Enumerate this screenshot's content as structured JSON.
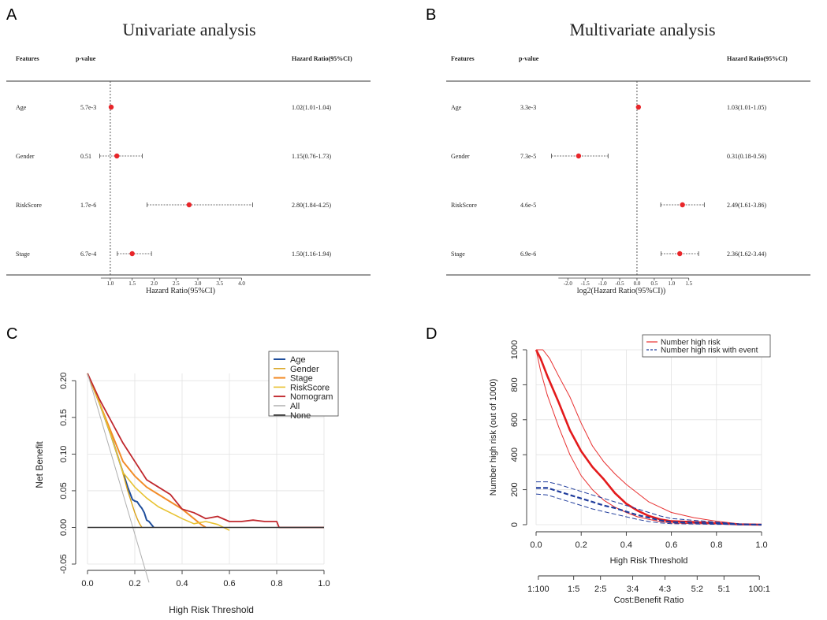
{
  "chart_data": [
    {
      "panel": "A",
      "type": "forest",
      "title": "Univariate analysis",
      "columns": {
        "features": "Features",
        "pvalue": "p-value",
        "hr": "Hazard Ratio(95%CI)"
      },
      "xlabel": "Hazard Ratio(95%CI)",
      "xscale": "linear",
      "xlim": [
        0.75,
        4.35
      ],
      "reference": 1.0,
      "xticks": [
        1.0,
        1.5,
        2.0,
        2.5,
        3.0,
        3.5,
        4.0
      ],
      "xtick_labels": [
        "1.0",
        "1.5",
        "2.0",
        "2.5",
        "3.0",
        "3.5",
        "4.0"
      ],
      "rows": [
        {
          "feature": "Age",
          "pvalue": "5.7e-3",
          "hr_text": "1.02(1.01-1.04)",
          "hr": 1.02,
          "low": 1.01,
          "high": 1.04
        },
        {
          "feature": "Gender",
          "pvalue": "0.51",
          "hr_text": "1.15(0.76-1.73)",
          "hr": 1.15,
          "low": 0.76,
          "high": 1.73
        },
        {
          "feature": "RiskScore",
          "pvalue": "1.7e-6",
          "hr_text": "2.80(1.84-4.25)",
          "hr": 2.8,
          "low": 1.84,
          "high": 4.25
        },
        {
          "feature": "Stage",
          "pvalue": "6.7e-4",
          "hr_text": "1.50(1.16-1.94)",
          "hr": 1.5,
          "low": 1.16,
          "high": 1.94
        }
      ]
    },
    {
      "panel": "B",
      "type": "forest",
      "title": "Multivariate analysis",
      "columns": {
        "features": "Features",
        "pvalue": "p-value",
        "hr": "Hazard Ratio(95%CI)"
      },
      "xlabel": "log2(Hazard Ratio(95%CI))",
      "xscale": "log2",
      "xlim": [
        -2.6,
        2.1
      ],
      "reference": 0.0,
      "xticks": [
        -2.0,
        -1.5,
        -1.0,
        -0.5,
        0.0,
        0.5,
        1.0,
        1.5
      ],
      "xtick_labels": [
        "-2.0",
        "-1.5",
        "-1.0",
        "-0.5",
        "0.0",
        "0.5",
        "1.0",
        "1.5"
      ],
      "rows": [
        {
          "feature": "Age",
          "pvalue": "3.3e-3",
          "hr_text": "1.03(1.01-1.05)",
          "hr": 1.03,
          "low": 1.01,
          "high": 1.05
        },
        {
          "feature": "Gender",
          "pvalue": "7.3e-5",
          "hr_text": "0.31(0.18-0.56)",
          "hr": 0.31,
          "low": 0.18,
          "high": 0.56
        },
        {
          "feature": "RiskScore",
          "pvalue": "4.6e-5",
          "hr_text": "2.49(1.61-3.86)",
          "hr": 2.49,
          "low": 1.61,
          "high": 3.86
        },
        {
          "feature": "Stage",
          "pvalue": "6.9e-6",
          "hr_text": "2.36(1.62-3.44)",
          "hr": 2.36,
          "low": 1.62,
          "high": 3.44
        }
      ]
    },
    {
      "panel": "C",
      "type": "line",
      "xlabel": "High Risk Threshold",
      "ylabel": "Net Benefit",
      "xlim": [
        0,
        1
      ],
      "ylim": [
        -0.05,
        0.21
      ],
      "xticks": [
        0.0,
        0.2,
        0.4,
        0.6,
        0.8,
        1.0
      ],
      "xtick_labels": [
        "0.0",
        "0.2",
        "0.4",
        "0.6",
        "0.8",
        "1.0"
      ],
      "yticks": [
        -0.05,
        0.0,
        0.05,
        0.1,
        0.15,
        0.2
      ],
      "ytick_labels": [
        "-0.05",
        "0.00",
        "0.05",
        "0.10",
        "0.15",
        "0.20"
      ],
      "grid": true,
      "legend_position": "top-right",
      "series": [
        {
          "name": "Age",
          "color": "#1f4e9c",
          "width": 2,
          "x": [
            0,
            0.05,
            0.1,
            0.14,
            0.17,
            0.19,
            0.2,
            0.21,
            0.22,
            0.23,
            0.24,
            0.25,
            0.26,
            0.27,
            0.28
          ],
          "y": [
            0.21,
            0.17,
            0.125,
            0.085,
            0.055,
            0.038,
            0.036,
            0.035,
            0.03,
            0.026,
            0.02,
            0.01,
            0.008,
            0.004,
            0.0
          ]
        },
        {
          "name": "Gender",
          "color": "#d9a21a",
          "width": 1.4,
          "x": [
            0,
            0.05,
            0.1,
            0.14,
            0.17,
            0.19,
            0.2,
            0.21,
            0.22,
            0.23
          ],
          "y": [
            0.21,
            0.17,
            0.125,
            0.085,
            0.05,
            0.03,
            0.02,
            0.012,
            0.005,
            0.0
          ]
        },
        {
          "name": "Stage",
          "color": "#f28c28",
          "width": 2,
          "x": [
            0,
            0.05,
            0.1,
            0.15,
            0.2,
            0.25,
            0.3,
            0.35,
            0.4,
            0.45,
            0.48,
            0.5
          ],
          "y": [
            0.21,
            0.17,
            0.13,
            0.09,
            0.07,
            0.055,
            0.045,
            0.035,
            0.025,
            0.012,
            0.004,
            0.0
          ]
        },
        {
          "name": "RiskScore",
          "color": "#e8c230",
          "width": 1.6,
          "x": [
            0,
            0.05,
            0.1,
            0.15,
            0.2,
            0.25,
            0.3,
            0.35,
            0.4,
            0.45,
            0.5,
            0.55,
            0.6
          ],
          "y": [
            0.21,
            0.17,
            0.125,
            0.075,
            0.055,
            0.04,
            0.028,
            0.02,
            0.012,
            0.005,
            0.008,
            0.004,
            -0.004
          ]
        },
        {
          "name": "Nomogram",
          "color": "#c0282d",
          "width": 1.8,
          "x": [
            0,
            0.05,
            0.1,
            0.15,
            0.2,
            0.25,
            0.3,
            0.35,
            0.4,
            0.45,
            0.5,
            0.55,
            0.6,
            0.65,
            0.7,
            0.75,
            0.8,
            0.81,
            1.0
          ],
          "y": [
            0.21,
            0.175,
            0.145,
            0.115,
            0.09,
            0.065,
            0.055,
            0.045,
            0.025,
            0.02,
            0.012,
            0.015,
            0.008,
            0.008,
            0.01,
            0.008,
            0.008,
            0.0,
            0.0
          ]
        },
        {
          "name": "All",
          "color": "#b0b0b0",
          "width": 1,
          "x": [
            0,
            0.26
          ],
          "y": [
            0.21,
            -0.075
          ]
        },
        {
          "name": "None",
          "color": "#333333",
          "width": 1.4,
          "x": [
            0,
            1.0
          ],
          "y": [
            0.0,
            0.0
          ]
        }
      ]
    },
    {
      "panel": "D",
      "type": "line",
      "xlabel": "High Risk Threshold",
      "ylabel": "Number high risk (out of 1000)",
      "x2label": "Cost:Benefit Ratio",
      "xlim": [
        0,
        1
      ],
      "ylim": [
        0,
        1000
      ],
      "xticks": [
        0.0,
        0.2,
        0.4,
        0.6,
        0.8,
        1.0
      ],
      "xtick_labels": [
        "0.0",
        "0.2",
        "0.4",
        "0.6",
        "0.8",
        "1.0"
      ],
      "yticks": [
        0,
        200,
        400,
        600,
        800,
        1000
      ],
      "ytick_labels": [
        "0",
        "200",
        "400",
        "600",
        "800",
        "1000"
      ],
      "x2ticks": [
        0.0099,
        0.1667,
        0.2857,
        0.4286,
        0.5714,
        0.7143,
        0.8333,
        0.9901
      ],
      "x2tick_labels": [
        "1:100",
        "1:5",
        "2:5",
        "3:4",
        "4:3",
        "5:2",
        "5:1",
        "100:1"
      ],
      "grid": true,
      "legend_position": "top-right",
      "legend": [
        {
          "label": "Number high risk",
          "color": "#e83030",
          "dash": "solid"
        },
        {
          "label": "Number high risk with event",
          "color": "#1f3c9c",
          "dash": "dashed"
        }
      ],
      "series": [
        {
          "role": "high_risk",
          "color": "#e31a1c",
          "width": 2.6,
          "dash": "solid",
          "x": [
            0,
            0.02,
            0.05,
            0.1,
            0.15,
            0.2,
            0.25,
            0.3,
            0.35,
            0.4,
            0.45,
            0.5,
            0.55,
            0.6,
            0.7,
            0.8,
            0.9,
            1.0
          ],
          "y": [
            1000,
            950,
            850,
            700,
            540,
            420,
            330,
            260,
            180,
            120,
            80,
            50,
            30,
            20,
            15,
            8,
            2,
            0
          ]
        },
        {
          "role": "high_risk_upper",
          "color": "#e83030",
          "width": 1,
          "dash": "solid",
          "x": [
            0,
            0.03,
            0.06,
            0.1,
            0.15,
            0.2,
            0.25,
            0.3,
            0.35,
            0.4,
            0.45,
            0.5,
            0.55,
            0.6,
            0.7,
            0.8,
            0.9,
            1.0
          ],
          "y": [
            1000,
            1000,
            950,
            850,
            730,
            580,
            450,
            360,
            290,
            230,
            180,
            130,
            100,
            70,
            40,
            20,
            5,
            0
          ]
        },
        {
          "role": "high_risk_lower",
          "color": "#e83030",
          "width": 1,
          "dash": "solid",
          "x": [
            0,
            0.02,
            0.05,
            0.1,
            0.15,
            0.2,
            0.25,
            0.3,
            0.35,
            0.4,
            0.45,
            0.5,
            0.55,
            0.6,
            0.7,
            0.8,
            0.9,
            1.0
          ],
          "y": [
            1000,
            880,
            740,
            560,
            400,
            280,
            200,
            140,
            100,
            70,
            45,
            30,
            18,
            10,
            6,
            4,
            1,
            0
          ]
        },
        {
          "role": "event",
          "color": "#1f3c9c",
          "width": 2.2,
          "dash": "dashed",
          "x": [
            0,
            0.05,
            0.1,
            0.15,
            0.2,
            0.25,
            0.3,
            0.35,
            0.4,
            0.45,
            0.5,
            0.55,
            0.6,
            0.7,
            0.8,
            0.9,
            1.0
          ],
          "y": [
            210,
            210,
            190,
            170,
            150,
            130,
            110,
            95,
            75,
            55,
            40,
            25,
            15,
            12,
            8,
            2,
            0
          ]
        },
        {
          "role": "event_upper",
          "color": "#1f3c9c",
          "width": 1,
          "dash": "dashed",
          "x": [
            0,
            0.05,
            0.1,
            0.15,
            0.2,
            0.25,
            0.3,
            0.35,
            0.4,
            0.45,
            0.5,
            0.55,
            0.6,
            0.7,
            0.8,
            0.9,
            1.0
          ],
          "y": [
            245,
            245,
            230,
            210,
            190,
            170,
            150,
            130,
            110,
            90,
            70,
            50,
            35,
            25,
            15,
            5,
            0
          ]
        },
        {
          "role": "event_lower",
          "color": "#1f3c9c",
          "width": 1,
          "dash": "dashed",
          "x": [
            0,
            0.05,
            0.1,
            0.15,
            0.2,
            0.25,
            0.3,
            0.35,
            0.4,
            0.45,
            0.5,
            0.55,
            0.6,
            0.7,
            0.8,
            0.9,
            1.0
          ],
          "y": [
            175,
            170,
            150,
            130,
            110,
            90,
            75,
            60,
            45,
            30,
            18,
            10,
            6,
            4,
            2,
            1,
            0
          ]
        }
      ]
    }
  ],
  "panels": {
    "a": "A",
    "b": "B",
    "c": "C",
    "d": "D"
  },
  "legend_c": [
    "Age",
    "Gender",
    "Stage",
    "RiskScore",
    "Nomogram",
    "All",
    "None"
  ],
  "colors": {
    "point": "#e8262a",
    "grid": "#e2e2e2"
  }
}
